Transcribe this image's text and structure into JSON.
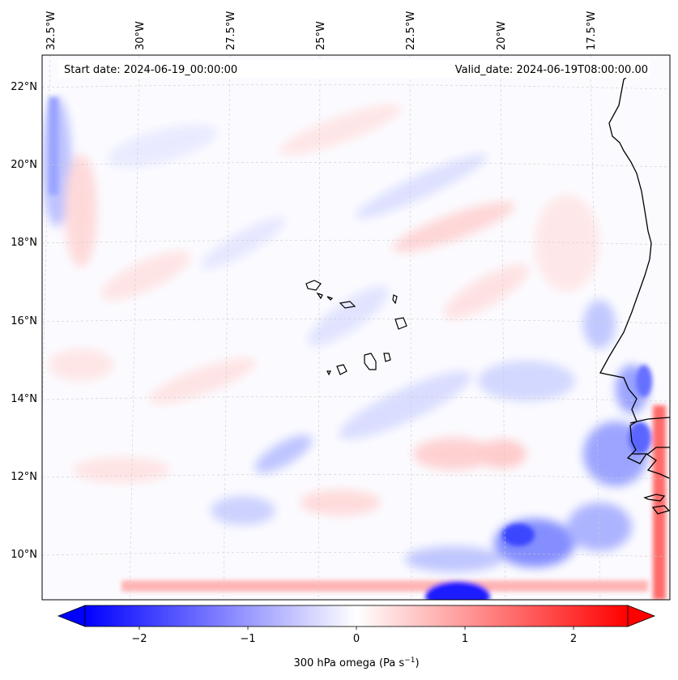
{
  "header": {
    "start_date": "Start date: 2024-06-19_00:00:00",
    "valid_date": "Valid_date: 2024-06-19T08:00:00.00"
  },
  "lon_ticks": [
    "32.5°W",
    "30°W",
    "27.5°W",
    "25°W",
    "22.5°W",
    "20°W",
    "17.5°W"
  ],
  "lat_ticks": [
    "22°N",
    "20°N",
    "18°N",
    "16°N",
    "14°N",
    "12°N",
    "10°N"
  ],
  "colorbar": {
    "label": "300 hPa omega (Pa s",
    "label_exp": "−1",
    "label_close": ")",
    "ticks": [
      "−2",
      "−1",
      "0",
      "1",
      "2"
    ],
    "range": [
      -2.7,
      2.7
    ],
    "colormap": "bwr",
    "extend": "both",
    "colors": {
      "min": "#0000ff",
      "mid": "#ffffff",
      "max": "#ff0000"
    }
  },
  "map": {
    "projection": "Lambert conformal",
    "extent_lon": [
      -32.8,
      -16.0
    ],
    "extent_lat": [
      8.8,
      22.8
    ],
    "coastline_color": "#000000",
    "gridline_style": "dashed",
    "gridline_color": "#cccccc"
  }
}
